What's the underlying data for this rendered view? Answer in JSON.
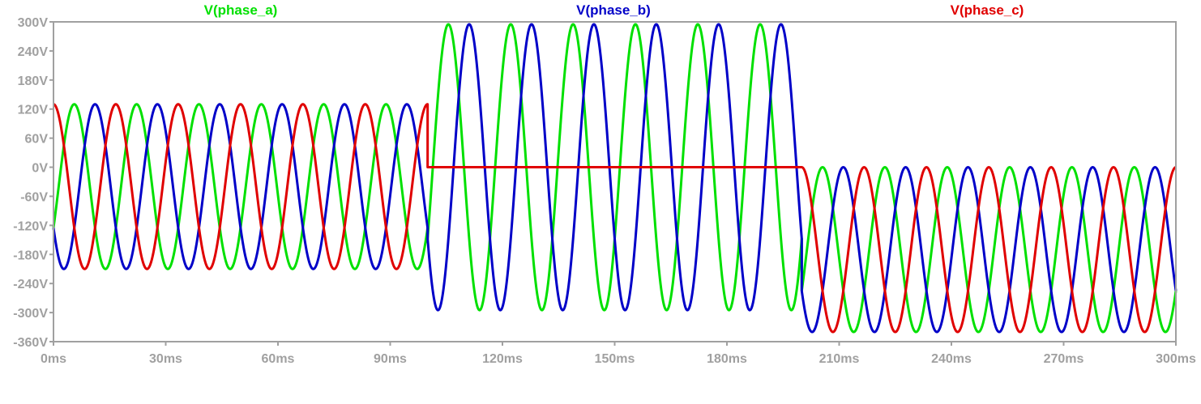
{
  "colors": {
    "background": "#ffffff",
    "frame": "#a0a0a0",
    "tick_label": "#a0a0a0",
    "phase_a": "#00e000",
    "phase_b": "#0000c8",
    "phase_c": "#e00000"
  },
  "chart_data": {
    "type": "line",
    "title": "",
    "xlabel": "",
    "ylabel": "",
    "grid": false,
    "legend": "top",
    "xlim": [
      0,
      300
    ],
    "ylim": [
      -360,
      300
    ],
    "x_unit": "ms",
    "y_unit": "V",
    "x_ticks": [
      0,
      30,
      60,
      90,
      120,
      150,
      180,
      210,
      240,
      270,
      300
    ],
    "x_tick_labels": [
      "0ms",
      "30ms",
      "60ms",
      "90ms",
      "120ms",
      "150ms",
      "180ms",
      "210ms",
      "240ms",
      "270ms",
      "300ms"
    ],
    "y_ticks": [
      300,
      240,
      180,
      120,
      60,
      0,
      -60,
      -120,
      -180,
      -240,
      -300,
      -360
    ],
    "y_tick_labels": [
      "300V",
      "240V",
      "180V",
      "120V",
      "60V",
      "0V",
      "-60V",
      "-120V",
      "-180V",
      "-240V",
      "-300V",
      "-360V"
    ],
    "frequency_hz": 60,
    "series": [
      {
        "name": "V(phase_a)",
        "color": "#00e000",
        "phase_deg": -120,
        "segments": [
          {
            "t_start": 0,
            "t_end": 100,
            "amplitude": 170,
            "offset": -40
          },
          {
            "t_start": 100,
            "t_end": 200,
            "amplitude": 295,
            "offset": 0
          },
          {
            "t_start": 200,
            "t_end": 300,
            "amplitude": 170,
            "offset": -170
          }
        ]
      },
      {
        "name": "V(phase_b)",
        "color": "#0000c8",
        "phase_deg": -240,
        "segments": [
          {
            "t_start": 0,
            "t_end": 100,
            "amplitude": 170,
            "offset": -40
          },
          {
            "t_start": 100,
            "t_end": 200,
            "amplitude": 295,
            "offset": 0
          },
          {
            "t_start": 200,
            "t_end": 300,
            "amplitude": 170,
            "offset": -170
          }
        ]
      },
      {
        "name": "V(phase_c)",
        "color": "#e00000",
        "phase_deg": 0,
        "segments": [
          {
            "t_start": 0,
            "t_end": 100,
            "amplitude": 170,
            "offset": -40
          },
          {
            "t_start": 100,
            "t_end": 200,
            "amplitude": 0,
            "offset": 0
          },
          {
            "t_start": 200,
            "t_end": 300,
            "amplitude": 170,
            "offset": -170
          }
        ]
      }
    ]
  }
}
